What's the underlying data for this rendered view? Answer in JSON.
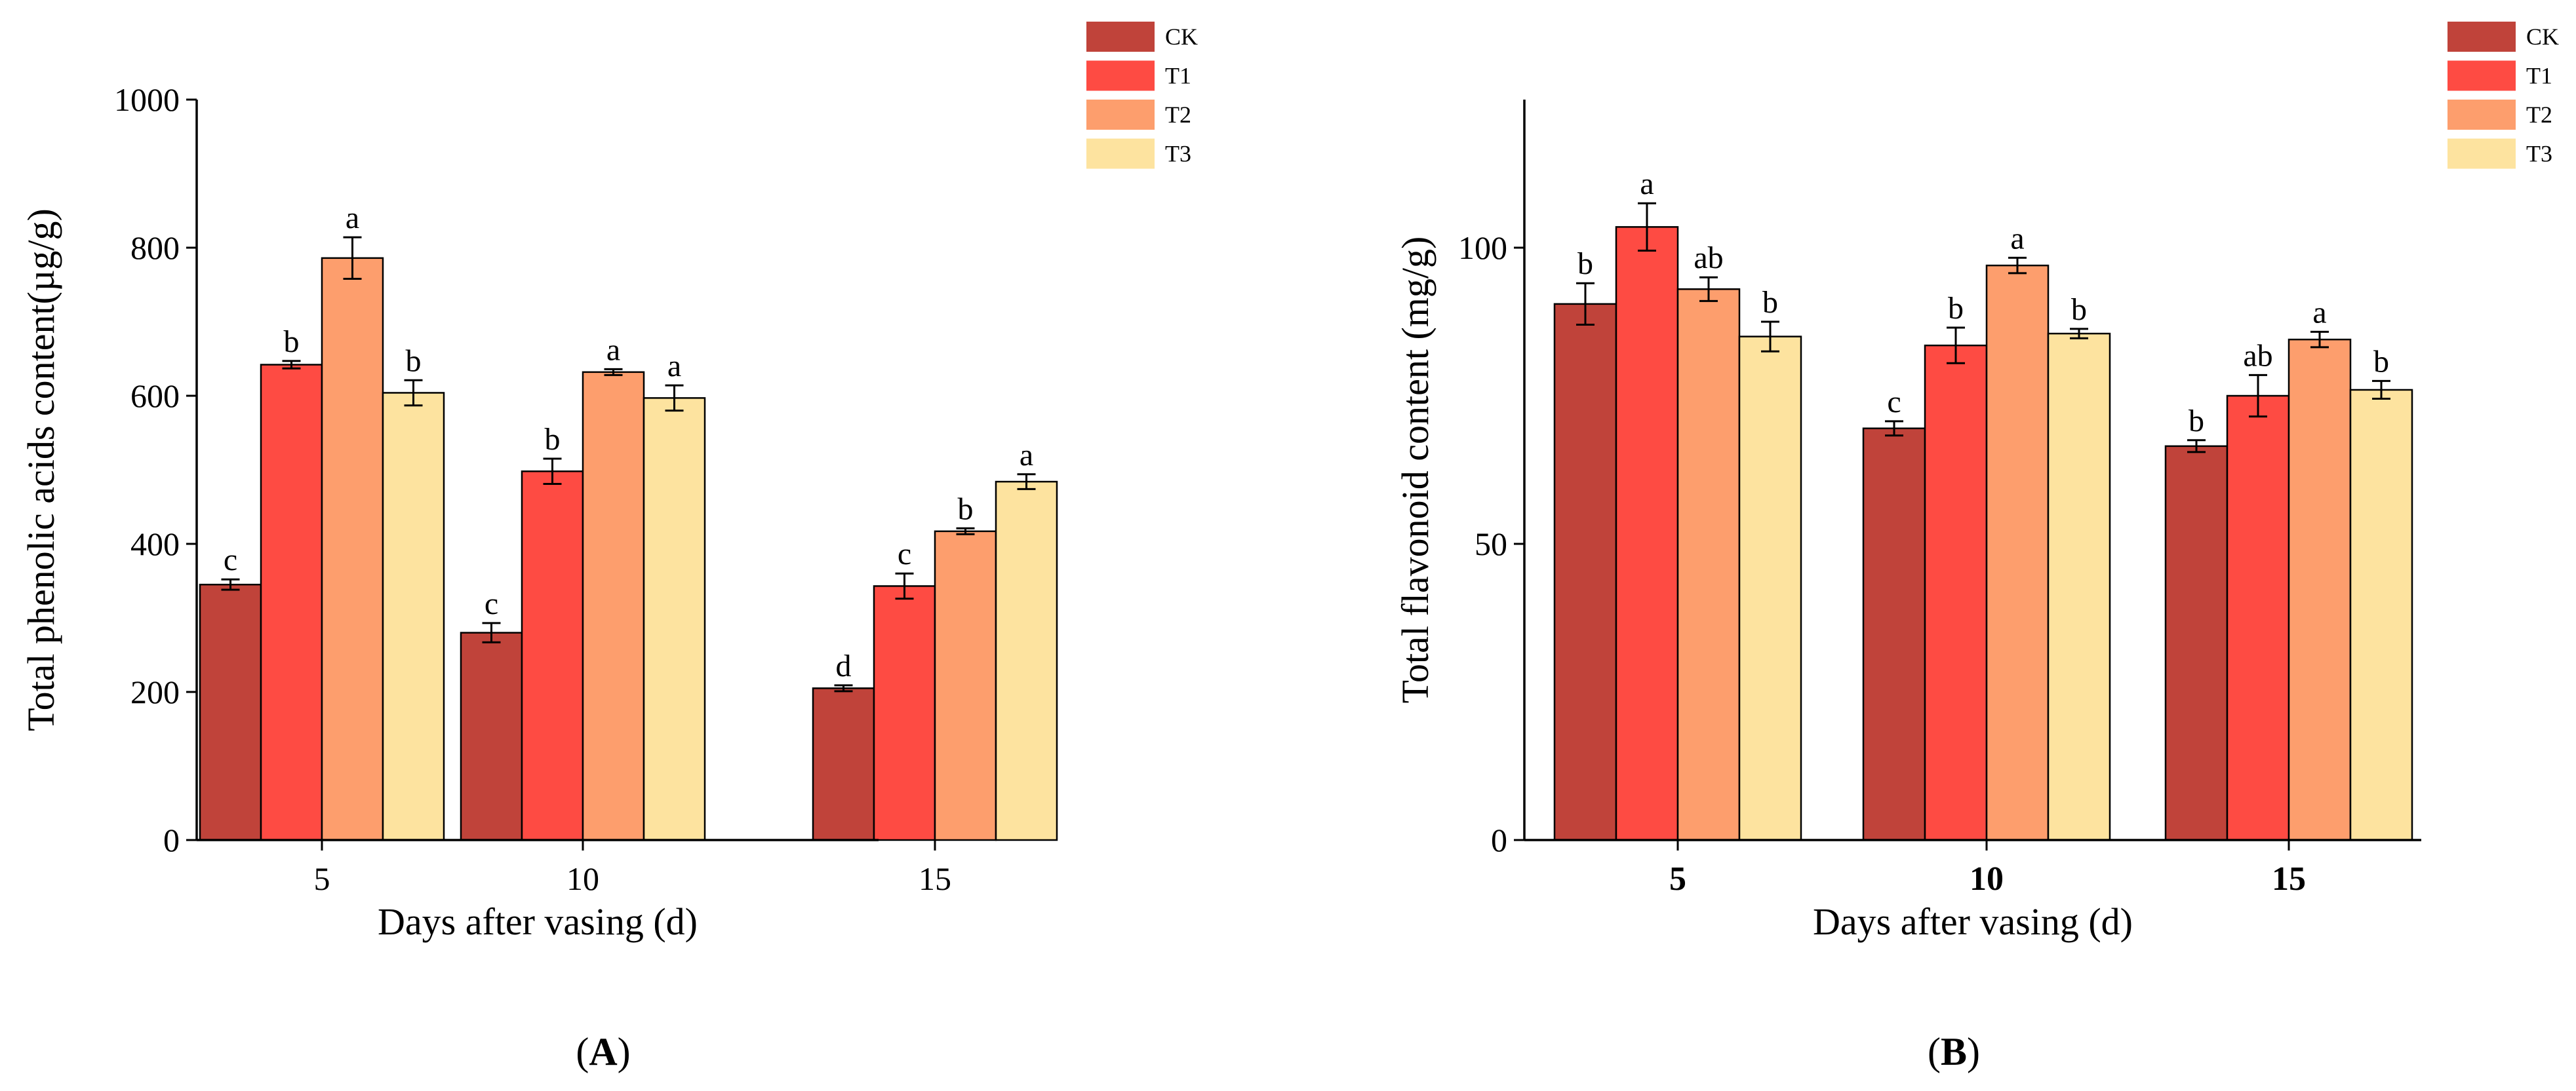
{
  "chart_data": [
    {
      "type": "bar",
      "panel_label": "(A)",
      "xlabel": "Days after vasing (d)",
      "ylabel": "Total phenolic acids content(µg/g)",
      "ylim": [
        0,
        1000
      ],
      "yticks": [
        0,
        200,
        400,
        600,
        800,
        1000
      ],
      "categories": [
        "5",
        "10",
        "15"
      ],
      "bold_x_ticks": false,
      "series": [
        {
          "name": "CK",
          "color": "#c0433a",
          "values": [
            345,
            280,
            205
          ],
          "errors": [
            7,
            13,
            4
          ],
          "labels": [
            "c",
            "c",
            "d"
          ]
        },
        {
          "name": "T1",
          "color": "#fe4b43",
          "values": [
            642,
            498,
            343
          ],
          "errors": [
            5,
            17,
            17
          ],
          "labels": [
            "b",
            "b",
            "c"
          ]
        },
        {
          "name": "T2",
          "color": "#fd9e6d",
          "values": [
            786,
            632,
            417
          ],
          "errors": [
            28,
            4,
            4
          ],
          "labels": [
            "a",
            "a",
            "b"
          ]
        },
        {
          "name": "T3",
          "color": "#fde39f",
          "values": [
            604,
            597,
            484
          ],
          "errors": [
            17,
            17,
            10
          ],
          "labels": [
            "b",
            "a",
            "a"
          ]
        }
      ],
      "legend_position": "top-right"
    },
    {
      "type": "bar",
      "panel_label": "(B)",
      "xlabel": "Days after vasing (d)",
      "ylabel": "Total flavonoid content (mg/g)",
      "ylim": [
        0,
        125
      ],
      "yticks": [
        0,
        50,
        100
      ],
      "categories": [
        "5",
        "10",
        "15"
      ],
      "bold_x_ticks": true,
      "series": [
        {
          "name": "CK",
          "color": "#c0433a",
          "values": [
            90.5,
            69.5,
            66.5
          ],
          "errors": [
            3.5,
            1.2,
            1.0
          ],
          "labels": [
            "b",
            "c",
            "b"
          ]
        },
        {
          "name": "T1",
          "color": "#fe4b43",
          "values": [
            103.5,
            83.5,
            75.0
          ],
          "errors": [
            4.0,
            3.0,
            3.5
          ],
          "labels": [
            "a",
            "b",
            "ab"
          ]
        },
        {
          "name": "T2",
          "color": "#fd9e6d",
          "values": [
            93.0,
            97.0,
            84.5
          ],
          "errors": [
            2.0,
            1.3,
            1.3
          ],
          "labels": [
            "ab",
            "a",
            "a"
          ]
        },
        {
          "name": "T3",
          "color": "#fde39f",
          "values": [
            85.0,
            85.5,
            76.0
          ],
          "errors": [
            2.5,
            0.8,
            1.5
          ],
          "labels": [
            "b",
            "b",
            "b"
          ]
        }
      ],
      "legend_position": "top-right"
    }
  ]
}
